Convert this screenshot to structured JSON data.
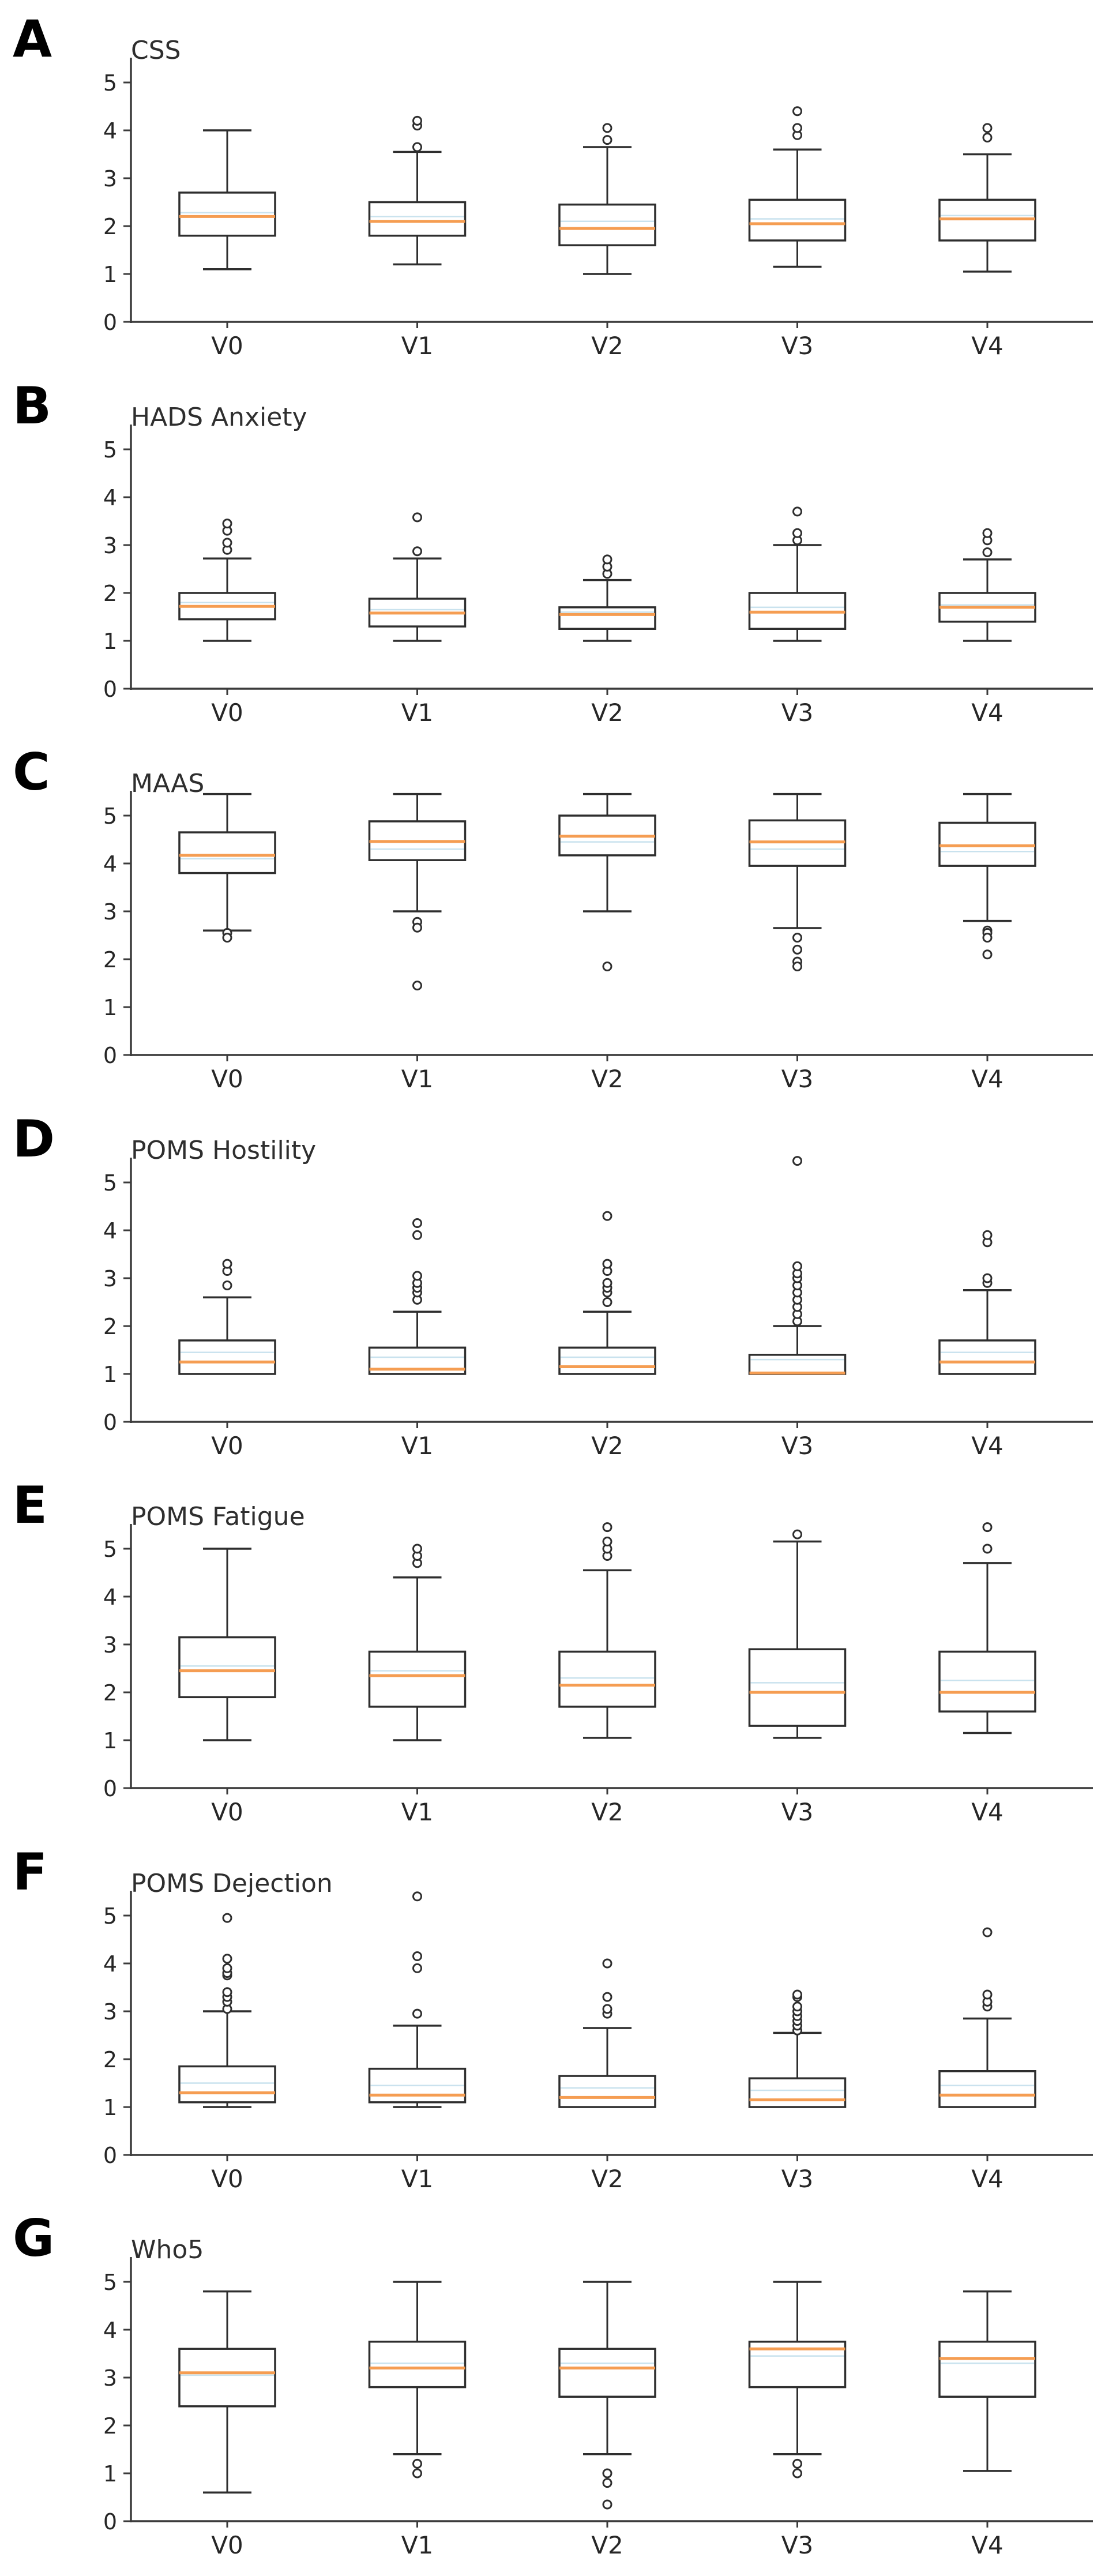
{
  "figure": {
    "background": "#ffffff",
    "box_color": "#2e2e2e",
    "median_color": "#f59d52",
    "mean_color": "#c9e2ee",
    "axis_color": "#3b3b3b",
    "text_color": "#262626",
    "categories": [
      "V0",
      "V1",
      "V2",
      "V3",
      "V4"
    ],
    "y_ticks": [
      0,
      1,
      2,
      3,
      4,
      5
    ],
    "ylim": [
      0,
      5.5
    ],
    "legend": "none",
    "grid": "off"
  },
  "chart_data": [
    {
      "type": "box",
      "panel_letter": "A",
      "title": "CSS",
      "categories": [
        "V0",
        "V1",
        "V2",
        "V3",
        "V4"
      ],
      "xlabel": "",
      "ylabel": "",
      "ylim": [
        0,
        5.5
      ],
      "series": [
        {
          "label": "V0",
          "whislo": 1.1,
          "q1": 1.8,
          "med": 2.2,
          "q3": 2.7,
          "whishi": 4.0,
          "mean": 2.28,
          "fliers": []
        },
        {
          "label": "V1",
          "whislo": 1.2,
          "q1": 1.8,
          "med": 2.1,
          "q3": 2.5,
          "whishi": 3.55,
          "mean": 2.2,
          "fliers": [
            3.65,
            4.1,
            4.2
          ]
        },
        {
          "label": "V2",
          "whislo": 1.0,
          "q1": 1.6,
          "med": 1.95,
          "q3": 2.45,
          "whishi": 3.65,
          "mean": 2.1,
          "fliers": [
            3.8,
            4.05
          ]
        },
        {
          "label": "V3",
          "whislo": 1.15,
          "q1": 1.7,
          "med": 2.05,
          "q3": 2.55,
          "whishi": 3.6,
          "mean": 2.15,
          "fliers": [
            3.9,
            4.05,
            4.4
          ]
        },
        {
          "label": "V4",
          "whislo": 1.05,
          "q1": 1.7,
          "med": 2.15,
          "q3": 2.55,
          "whishi": 3.5,
          "mean": 2.22,
          "fliers": [
            3.85,
            4.05
          ]
        }
      ]
    },
    {
      "type": "box",
      "panel_letter": "B",
      "title": "HADS Anxiety",
      "categories": [
        "V0",
        "V1",
        "V2",
        "V3",
        "V4"
      ],
      "xlabel": "",
      "ylabel": "",
      "ylim": [
        0,
        5.5
      ],
      "series": [
        {
          "label": "V0",
          "whislo": 1.0,
          "q1": 1.45,
          "med": 1.72,
          "q3": 2.0,
          "whishi": 2.72,
          "mean": 1.8,
          "fliers": [
            2.9,
            3.05,
            3.3,
            3.45
          ]
        },
        {
          "label": "V1",
          "whislo": 1.0,
          "q1": 1.3,
          "med": 1.58,
          "q3": 1.88,
          "whishi": 2.72,
          "mean": 1.65,
          "fliers": [
            2.87,
            3.58
          ]
        },
        {
          "label": "V2",
          "whislo": 1.0,
          "q1": 1.25,
          "med": 1.55,
          "q3": 1.7,
          "whishi": 2.27,
          "mean": 1.6,
          "fliers": [
            2.4,
            2.55,
            2.7
          ]
        },
        {
          "label": "V3",
          "whislo": 1.0,
          "q1": 1.25,
          "med": 1.6,
          "q3": 2.0,
          "whishi": 3.0,
          "mean": 1.7,
          "fliers": [
            3.1,
            3.25,
            3.7
          ]
        },
        {
          "label": "V4",
          "whislo": 1.0,
          "q1": 1.4,
          "med": 1.7,
          "q3": 2.0,
          "whishi": 2.7,
          "mean": 1.75,
          "fliers": [
            2.85,
            3.1,
            3.25
          ]
        }
      ]
    },
    {
      "type": "box",
      "panel_letter": "C",
      "title": "MAAS",
      "categories": [
        "V0",
        "V1",
        "V2",
        "V3",
        "V4"
      ],
      "xlabel": "",
      "ylabel": "",
      "ylim": [
        0,
        5.5
      ],
      "series": [
        {
          "label": "V0",
          "whislo": 2.6,
          "q1": 3.8,
          "med": 4.17,
          "q3": 4.65,
          "whishi": 5.45,
          "mean": 4.1,
          "fliers": [
            2.55,
            2.45
          ]
        },
        {
          "label": "V1",
          "whislo": 3.0,
          "q1": 4.07,
          "med": 4.46,
          "q3": 4.88,
          "whishi": 5.45,
          "mean": 4.3,
          "fliers": [
            2.78,
            2.66,
            1.45
          ]
        },
        {
          "label": "V2",
          "whislo": 3.0,
          "q1": 4.17,
          "med": 4.57,
          "q3": 5.0,
          "whishi": 5.45,
          "mean": 4.45,
          "fliers": [
            1.85
          ]
        },
        {
          "label": "V3",
          "whislo": 2.65,
          "q1": 3.95,
          "med": 4.45,
          "q3": 4.9,
          "whishi": 5.45,
          "mean": 4.3,
          "fliers": [
            2.45,
            2.2,
            1.95,
            1.85
          ]
        },
        {
          "label": "V4",
          "whislo": 2.8,
          "q1": 3.95,
          "med": 4.37,
          "q3": 4.85,
          "whishi": 5.45,
          "mean": 4.25,
          "fliers": [
            2.6,
            2.55,
            2.45,
            2.1
          ]
        }
      ]
    },
    {
      "type": "box",
      "panel_letter": "D",
      "title": "POMS Hostility",
      "categories": [
        "V0",
        "V1",
        "V2",
        "V3",
        "V4"
      ],
      "xlabel": "",
      "ylabel": "",
      "ylim": [
        0,
        5.5
      ],
      "series": [
        {
          "label": "V0",
          "whislo": 1.0,
          "q1": 1.0,
          "med": 1.25,
          "q3": 1.7,
          "whishi": 2.6,
          "mean": 1.45,
          "fliers": [
            2.85,
            3.15,
            3.3
          ]
        },
        {
          "label": "V1",
          "whislo": 1.0,
          "q1": 1.0,
          "med": 1.1,
          "q3": 1.55,
          "whishi": 2.3,
          "mean": 1.35,
          "fliers": [
            2.55,
            2.7,
            2.8,
            2.9,
            3.05,
            3.9,
            4.15
          ]
        },
        {
          "label": "V2",
          "whislo": 1.0,
          "q1": 1.0,
          "med": 1.15,
          "q3": 1.55,
          "whishi": 2.3,
          "mean": 1.35,
          "fliers": [
            2.5,
            2.7,
            2.8,
            2.9,
            3.15,
            3.3,
            4.3
          ]
        },
        {
          "label": "V3",
          "whislo": 1.0,
          "q1": 1.0,
          "med": 1.02,
          "q3": 1.4,
          "whishi": 2.0,
          "mean": 1.3,
          "fliers": [
            2.1,
            2.25,
            2.4,
            2.55,
            2.7,
            2.85,
            3.0,
            3.1,
            3.25,
            5.45
          ]
        },
        {
          "label": "V4",
          "whislo": 1.0,
          "q1": 1.0,
          "med": 1.25,
          "q3": 1.7,
          "whishi": 2.75,
          "mean": 1.45,
          "fliers": [
            2.9,
            3.0,
            3.75,
            3.9
          ]
        }
      ]
    },
    {
      "type": "box",
      "panel_letter": "E",
      "title": "POMS Fatigue",
      "categories": [
        "V0",
        "V1",
        "V2",
        "V3",
        "V4"
      ],
      "xlabel": "",
      "ylabel": "",
      "ylim": [
        0,
        5.5
      ],
      "series": [
        {
          "label": "V0",
          "whislo": 1.0,
          "q1": 1.9,
          "med": 2.45,
          "q3": 3.15,
          "whishi": 5.0,
          "mean": 2.55,
          "fliers": []
        },
        {
          "label": "V1",
          "whislo": 1.0,
          "q1": 1.7,
          "med": 2.35,
          "q3": 2.85,
          "whishi": 4.4,
          "mean": 2.45,
          "fliers": [
            4.7,
            4.85,
            5.0
          ]
        },
        {
          "label": "V2",
          "whislo": 1.05,
          "q1": 1.7,
          "med": 2.15,
          "q3": 2.85,
          "whishi": 4.55,
          "mean": 2.3,
          "fliers": [
            4.85,
            5.0,
            5.15,
            5.45
          ]
        },
        {
          "label": "V3",
          "whislo": 1.05,
          "q1": 1.3,
          "med": 2.0,
          "q3": 2.9,
          "whishi": 5.15,
          "mean": 2.2,
          "fliers": [
            5.3
          ]
        },
        {
          "label": "V4",
          "whislo": 1.15,
          "q1": 1.6,
          "med": 2.0,
          "q3": 2.85,
          "whishi": 4.7,
          "mean": 2.25,
          "fliers": [
            5.0,
            5.45
          ]
        }
      ]
    },
    {
      "type": "box",
      "panel_letter": "F",
      "title": "POMS Dejection",
      "categories": [
        "V0",
        "V1",
        "V2",
        "V3",
        "V4"
      ],
      "xlabel": "",
      "ylabel": "",
      "ylim": [
        0,
        5.5
      ],
      "series": [
        {
          "label": "V0",
          "whislo": 1.0,
          "q1": 1.1,
          "med": 1.3,
          "q3": 1.85,
          "whishi": 3.0,
          "mean": 1.5,
          "fliers": [
            3.05,
            3.2,
            3.3,
            3.4,
            3.75,
            3.8,
            3.9,
            4.1,
            4.95
          ]
        },
        {
          "label": "V1",
          "whislo": 1.0,
          "q1": 1.1,
          "med": 1.25,
          "q3": 1.8,
          "whishi": 2.7,
          "mean": 1.45,
          "fliers": [
            2.95,
            3.9,
            4.15,
            5.4
          ]
        },
        {
          "label": "V2",
          "whislo": 1.0,
          "q1": 1.0,
          "med": 1.2,
          "q3": 1.65,
          "whishi": 2.65,
          "mean": 1.4,
          "fliers": [
            2.95,
            3.05,
            3.3,
            4.0
          ]
        },
        {
          "label": "V3",
          "whislo": 1.0,
          "q1": 1.0,
          "med": 1.15,
          "q3": 1.6,
          "whishi": 2.55,
          "mean": 1.35,
          "fliers": [
            2.6,
            2.7,
            2.8,
            2.9,
            3.0,
            3.1,
            3.3,
            3.35
          ]
        },
        {
          "label": "V4",
          "whislo": 1.0,
          "q1": 1.0,
          "med": 1.25,
          "q3": 1.75,
          "whishi": 2.85,
          "mean": 1.45,
          "fliers": [
            3.1,
            3.2,
            3.35,
            4.65
          ]
        }
      ]
    },
    {
      "type": "box",
      "panel_letter": "G",
      "title": "Who5",
      "categories": [
        "V0",
        "V1",
        "V2",
        "V3",
        "V4"
      ],
      "xlabel": "",
      "ylabel": "",
      "ylim": [
        0,
        5.5
      ],
      "series": [
        {
          "label": "V0",
          "whislo": 0.6,
          "q1": 2.4,
          "med": 3.1,
          "q3": 3.6,
          "whishi": 4.8,
          "mean": 3.05,
          "fliers": []
        },
        {
          "label": "V1",
          "whislo": 1.4,
          "q1": 2.8,
          "med": 3.2,
          "q3": 3.75,
          "whishi": 5.0,
          "mean": 3.3,
          "fliers": [
            1.2,
            1.0
          ]
        },
        {
          "label": "V2",
          "whislo": 1.4,
          "q1": 2.6,
          "med": 3.2,
          "q3": 3.6,
          "whishi": 5.0,
          "mean": 3.3,
          "fliers": [
            1.0,
            0.8,
            0.35
          ]
        },
        {
          "label": "V3",
          "whislo": 1.4,
          "q1": 2.8,
          "med": 3.6,
          "q3": 3.75,
          "whishi": 5.0,
          "mean": 3.45,
          "fliers": [
            1.2,
            1.0
          ]
        },
        {
          "label": "V4",
          "whislo": 1.05,
          "q1": 2.6,
          "med": 3.4,
          "q3": 3.75,
          "whishi": 4.8,
          "mean": 3.3,
          "fliers": []
        }
      ]
    }
  ]
}
